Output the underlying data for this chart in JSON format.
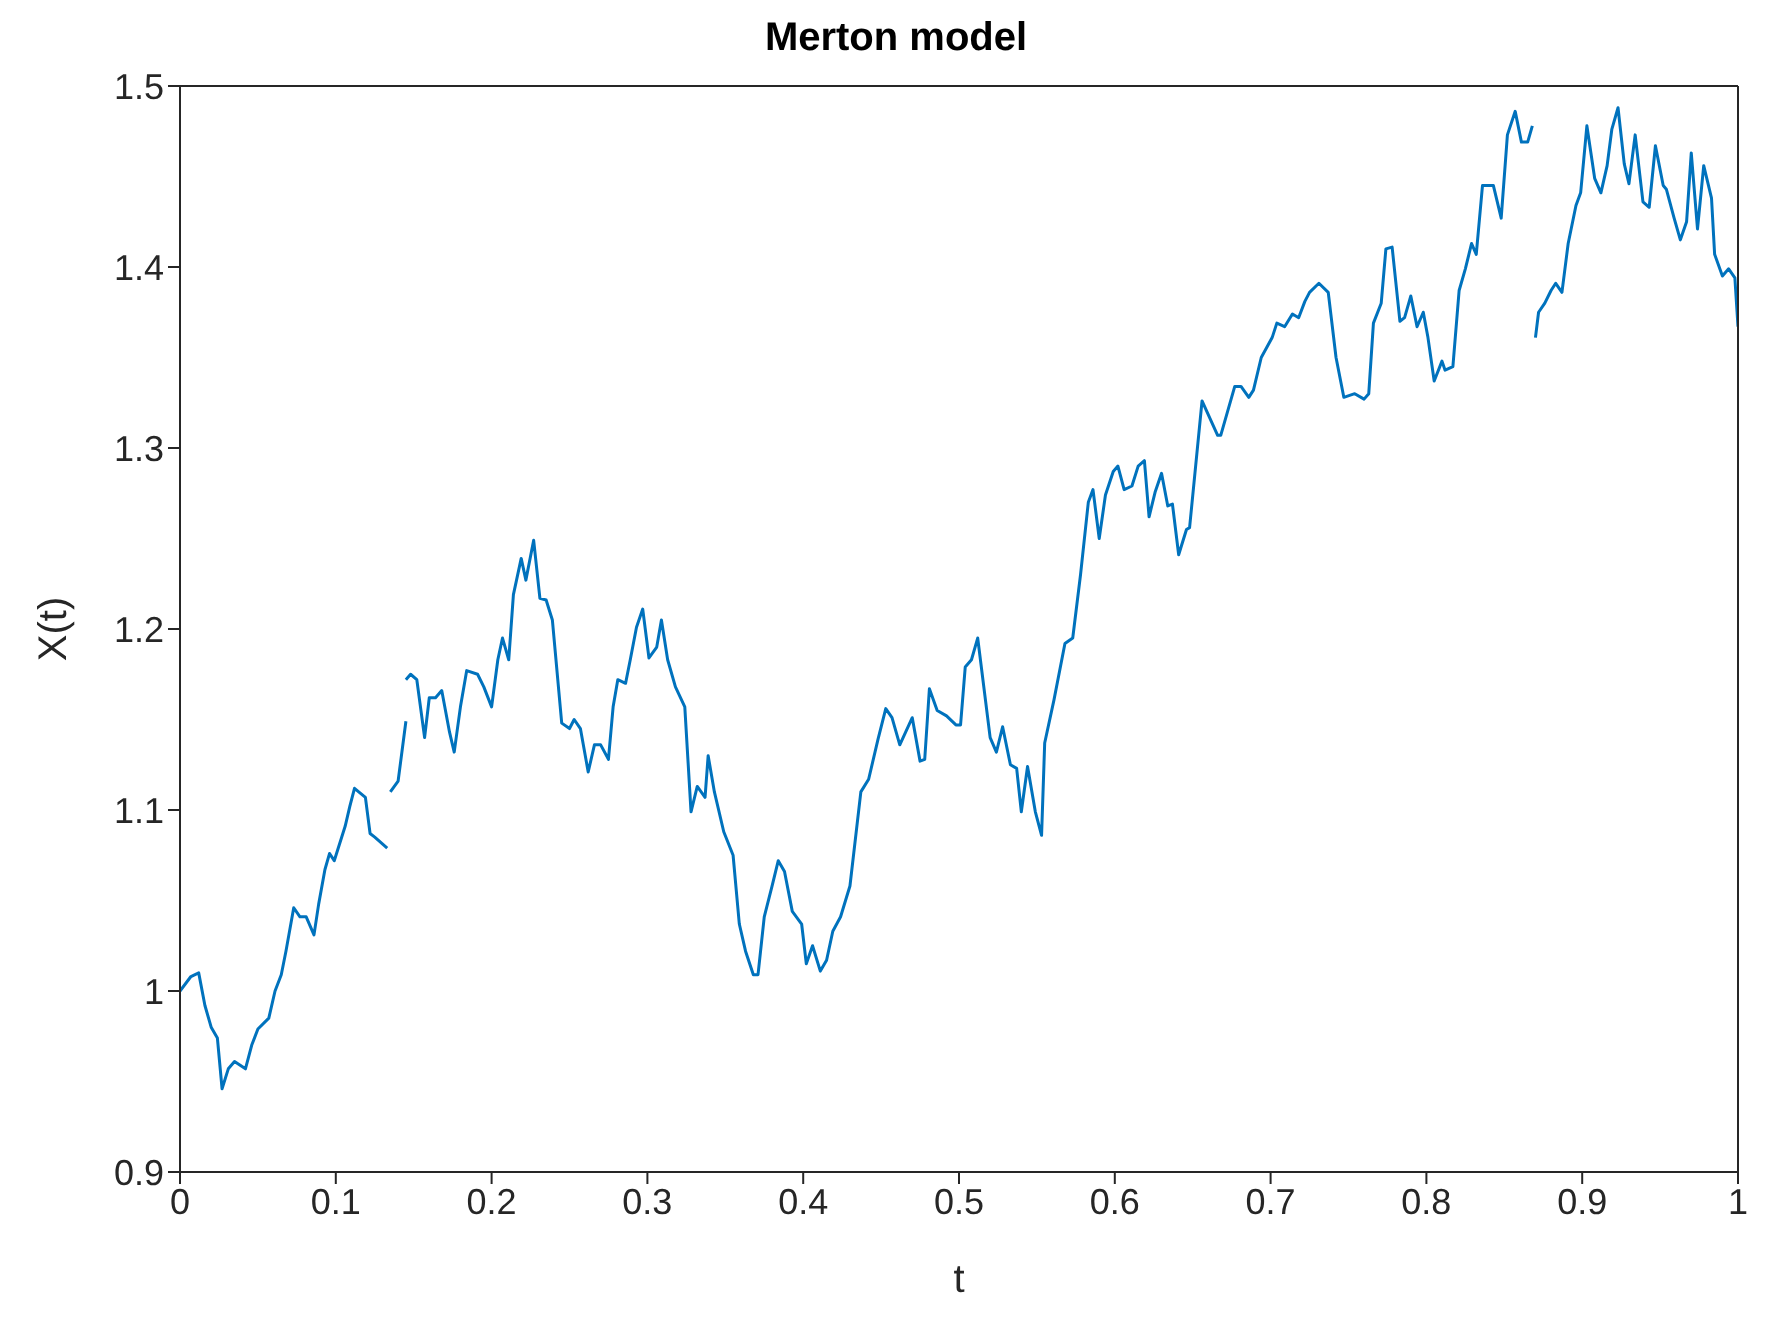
{
  "chart_data": {
    "type": "line",
    "title": "Merton model",
    "xlabel": "t",
    "ylabel": "X(t)",
    "xlim": [
      0,
      1
    ],
    "xticks": [
      0,
      0.1,
      0.2,
      0.3,
      0.4,
      0.5,
      0.6,
      0.7,
      0.8,
      0.9,
      1
    ],
    "ylim": [
      0.9,
      1.5
    ],
    "yticks": [
      0.9,
      1,
      1.1,
      1.2,
      1.3,
      1.4,
      1.5
    ],
    "grid": false,
    "legend": false,
    "marker": "none",
    "line_style": "solid",
    "series": [
      {
        "color": "#0072bd",
        "x": [
          0,
          0.007,
          0.012,
          0.016,
          0.02,
          0.024,
          0.027,
          0.031,
          0.035,
          0.042,
          0.046,
          0.05,
          0.057,
          0.061,
          0.065,
          0.068,
          0.073,
          0.077,
          0.081,
          0.086,
          0.089,
          0.093,
          0.096,
          0.099,
          0.106,
          0.109,
          0.112,
          0.119,
          0.122,
          0.125,
          0.133
        ],
        "values": [
          1.0,
          1.008,
          1.01,
          0.992,
          0.98,
          0.974,
          0.946,
          0.957,
          0.961,
          0.957,
          0.97,
          0.979,
          0.985,
          1.0,
          1.009,
          1.022,
          1.046,
          1.041,
          1.041,
          1.031,
          1.048,
          1.067,
          1.076,
          1.072,
          1.091,
          1.102,
          1.112,
          1.107,
          1.087,
          1.085,
          1.079
        ]
      },
      {
        "color": "#0072bd",
        "x": [
          0.135,
          0.14,
          0.145
        ],
        "values": [
          1.11,
          1.116,
          1.149
        ]
      },
      {
        "color": "#0072bd",
        "x": [
          0.145,
          0.148,
          0.152,
          0.157,
          0.16,
          0.164,
          0.168,
          0.173,
          0.176,
          0.18,
          0.184,
          0.191,
          0.195,
          0.2,
          0.204,
          0.207,
          0.211,
          0.214,
          0.219,
          0.222,
          0.227,
          0.231,
          0.235,
          0.239,
          0.245,
          0.25,
          0.253,
          0.257,
          0.262,
          0.266,
          0.27,
          0.275,
          0.278,
          0.281,
          0.286,
          0.289,
          0.293,
          0.297,
          0.301,
          0.306,
          0.309,
          0.313,
          0.318,
          0.324,
          0.328,
          0.332,
          0.337,
          0.339,
          0.343,
          0.349,
          0.355,
          0.359,
          0.363,
          0.368,
          0.371,
          0.375,
          0.38,
          0.384,
          0.388,
          0.393,
          0.399,
          0.402,
          0.406,
          0.411,
          0.415,
          0.419,
          0.424,
          0.43,
          0.437,
          0.442,
          0.448,
          0.453,
          0.457,
          0.462,
          0.47,
          0.475,
          0.478,
          0.481,
          0.486,
          0.492,
          0.498,
          0.501,
          0.504,
          0.508,
          0.512,
          0.52,
          0.524,
          0.528,
          0.533,
          0.537,
          0.54,
          0.544,
          0.549,
          0.553,
          0.555,
          0.561,
          0.568,
          0.573,
          0.578,
          0.583,
          0.586,
          0.59,
          0.594,
          0.599,
          0.602,
          0.606,
          0.611,
          0.615,
          0.619,
          0.622,
          0.626,
          0.63,
          0.634,
          0.637,
          0.641,
          0.646,
          0.648,
          0.656,
          0.666,
          0.668,
          0.677,
          0.681,
          0.686,
          0.689,
          0.694,
          0.701,
          0.704,
          0.709,
          0.714,
          0.718,
          0.722,
          0.725,
          0.731,
          0.737,
          0.742,
          0.747,
          0.754,
          0.76,
          0.763,
          0.766,
          0.771,
          0.774,
          0.778,
          0.783,
          0.786,
          0.79,
          0.794,
          0.798,
          0.801,
          0.805,
          0.81,
          0.812,
          0.817,
          0.821,
          0.825,
          0.829,
          0.832,
          0.836,
          0.843,
          0.848,
          0.852,
          0.857,
          0.861,
          0.865,
          0.868
        ],
        "values": [
          1.172,
          1.175,
          1.172,
          1.14,
          1.162,
          1.162,
          1.166,
          1.143,
          1.132,
          1.157,
          1.177,
          1.175,
          1.168,
          1.157,
          1.183,
          1.195,
          1.183,
          1.219,
          1.239,
          1.227,
          1.249,
          1.217,
          1.216,
          1.205,
          1.148,
          1.145,
          1.15,
          1.145,
          1.121,
          1.136,
          1.136,
          1.128,
          1.157,
          1.172,
          1.17,
          1.183,
          1.201,
          1.211,
          1.184,
          1.19,
          1.205,
          1.183,
          1.168,
          1.157,
          1.099,
          1.113,
          1.107,
          1.13,
          1.11,
          1.088,
          1.075,
          1.037,
          1.022,
          1.009,
          1.009,
          1.041,
          1.058,
          1.072,
          1.066,
          1.044,
          1.037,
          1.015,
          1.025,
          1.011,
          1.017,
          1.033,
          1.041,
          1.058,
          1.11,
          1.117,
          1.139,
          1.156,
          1.151,
          1.136,
          1.151,
          1.127,
          1.128,
          1.167,
          1.155,
          1.152,
          1.147,
          1.147,
          1.179,
          1.183,
          1.195,
          1.14,
          1.132,
          1.146,
          1.125,
          1.123,
          1.099,
          1.124,
          1.099,
          1.086,
          1.137,
          1.161,
          1.192,
          1.195,
          1.23,
          1.27,
          1.277,
          1.25,
          1.274,
          1.287,
          1.29,
          1.277,
          1.279,
          1.29,
          1.293,
          1.262,
          1.276,
          1.286,
          1.268,
          1.269,
          1.241,
          1.255,
          1.256,
          1.326,
          1.307,
          1.307,
          1.334,
          1.334,
          1.328,
          1.332,
          1.35,
          1.361,
          1.369,
          1.367,
          1.374,
          1.372,
          1.381,
          1.386,
          1.391,
          1.386,
          1.35,
          1.328,
          1.33,
          1.327,
          1.33,
          1.369,
          1.38,
          1.41,
          1.411,
          1.37,
          1.372,
          1.384,
          1.367,
          1.375,
          1.361,
          1.337,
          1.348,
          1.343,
          1.345,
          1.387,
          1.399,
          1.413,
          1.407,
          1.445,
          1.445,
          1.427,
          1.473,
          1.486,
          1.469,
          1.469,
          1.478
        ]
      },
      {
        "color": "#0072bd",
        "x": [
          0.87,
          0.872,
          0.876,
          0.88,
          0.883,
          0.887,
          0.891,
          0.896,
          0.899,
          0.903,
          0.908,
          0.912,
          0.916,
          0.919,
          0.923,
          0.927,
          0.93,
          0.934,
          0.939,
          0.943,
          0.947,
          0.952,
          0.954,
          0.959,
          0.963,
          0.967,
          0.97,
          0.974,
          0.978,
          0.983,
          0.985,
          0.99,
          0.994,
          0.998,
          1.0
        ],
        "values": [
          1.361,
          1.375,
          1.38,
          1.387,
          1.391,
          1.386,
          1.413,
          1.434,
          1.441,
          1.478,
          1.449,
          1.441,
          1.456,
          1.476,
          1.488,
          1.457,
          1.446,
          1.473,
          1.436,
          1.433,
          1.467,
          1.445,
          1.443,
          1.427,
          1.415,
          1.425,
          1.463,
          1.421,
          1.456,
          1.438,
          1.407,
          1.395,
          1.399,
          1.394,
          1.367
        ]
      }
    ]
  }
}
